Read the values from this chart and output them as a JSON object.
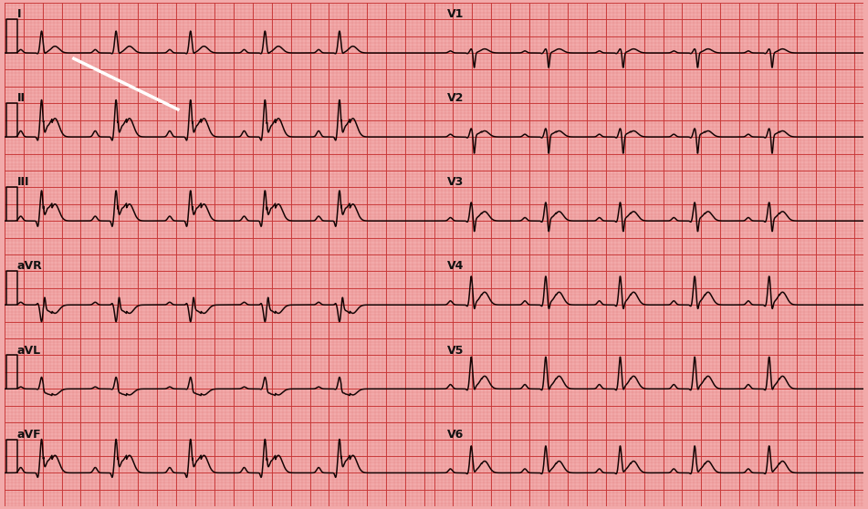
{
  "bg_color": "#f2aaaa",
  "grid_minor_color": "#e07575",
  "grid_major_color": "#c83535",
  "ecg_color": "#150505",
  "ecg_linewidth": 1.1,
  "label_fontsize": 9,
  "label_color": "#111111",
  "left_leads": [
    "I",
    "II",
    "III",
    "aVR",
    "aVL",
    "aVF"
  ],
  "right_leads": [
    "V1",
    "V2",
    "V3",
    "V4",
    "V5",
    "V6"
  ],
  "duration": 4.5,
  "fs": 500,
  "ylim": [
    -1.0,
    1.5
  ],
  "rr_interval": 0.78,
  "lead_configs": {
    "I": [
      0.1,
      -0.03,
      0.65,
      -0.05,
      0.2,
      0.0
    ],
    "II": [
      0.18,
      -0.12,
      1.1,
      -0.1,
      0.55,
      0.22
    ],
    "III": [
      0.14,
      -0.18,
      0.9,
      -0.08,
      0.5,
      0.28
    ],
    "aVR": [
      0.08,
      0.05,
      -0.5,
      0.35,
      -0.25,
      -0.12
    ],
    "aVL": [
      0.06,
      -0.02,
      0.35,
      -0.04,
      -0.18,
      -0.12
    ],
    "aVF": [
      0.16,
      -0.15,
      1.0,
      -0.07,
      0.52,
      0.25
    ],
    "V1": [
      0.06,
      -0.02,
      0.12,
      -0.45,
      0.12,
      0.0
    ],
    "V2": [
      0.08,
      -0.03,
      0.25,
      -0.55,
      0.18,
      0.05
    ],
    "V3": [
      0.1,
      -0.04,
      0.55,
      -0.4,
      0.28,
      0.05
    ],
    "V4": [
      0.12,
      -0.05,
      0.85,
      -0.22,
      0.38,
      0.05
    ],
    "V5": [
      0.13,
      -0.05,
      0.95,
      -0.12,
      0.38,
      0.05
    ],
    "V6": [
      0.12,
      -0.04,
      0.8,
      -0.06,
      0.35,
      0.05
    ]
  }
}
